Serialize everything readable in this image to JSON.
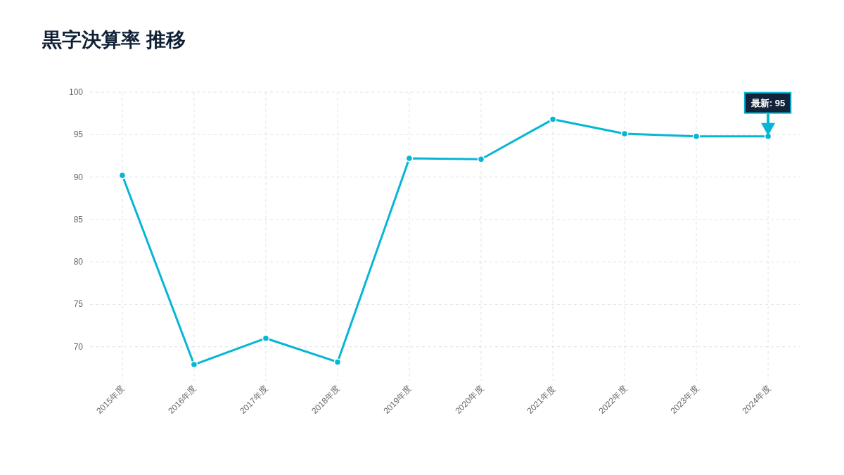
{
  "chart_data": {
    "type": "line",
    "title": "黒字決算率 推移",
    "categories": [
      "2015年度",
      "2016年度",
      "2017年度",
      "2018年度",
      "2019年度",
      "2020年度",
      "2021年度",
      "2022年度",
      "2023年度",
      "2024年度"
    ],
    "series": [
      {
        "color": "#06b6d4",
        "values": [
          90.2,
          67.9,
          71.0,
          68.2,
          92.2,
          92.1,
          96.8,
          95.1,
          94.8,
          94.8
        ]
      }
    ],
    "ylim": [
      66,
      100
    ],
    "yticks": [
      70,
      75,
      80,
      85,
      90,
      95,
      100
    ],
    "grid": true,
    "marker": "circle",
    "line_style": "solid",
    "annotations": [
      "最新: 95"
    ]
  }
}
